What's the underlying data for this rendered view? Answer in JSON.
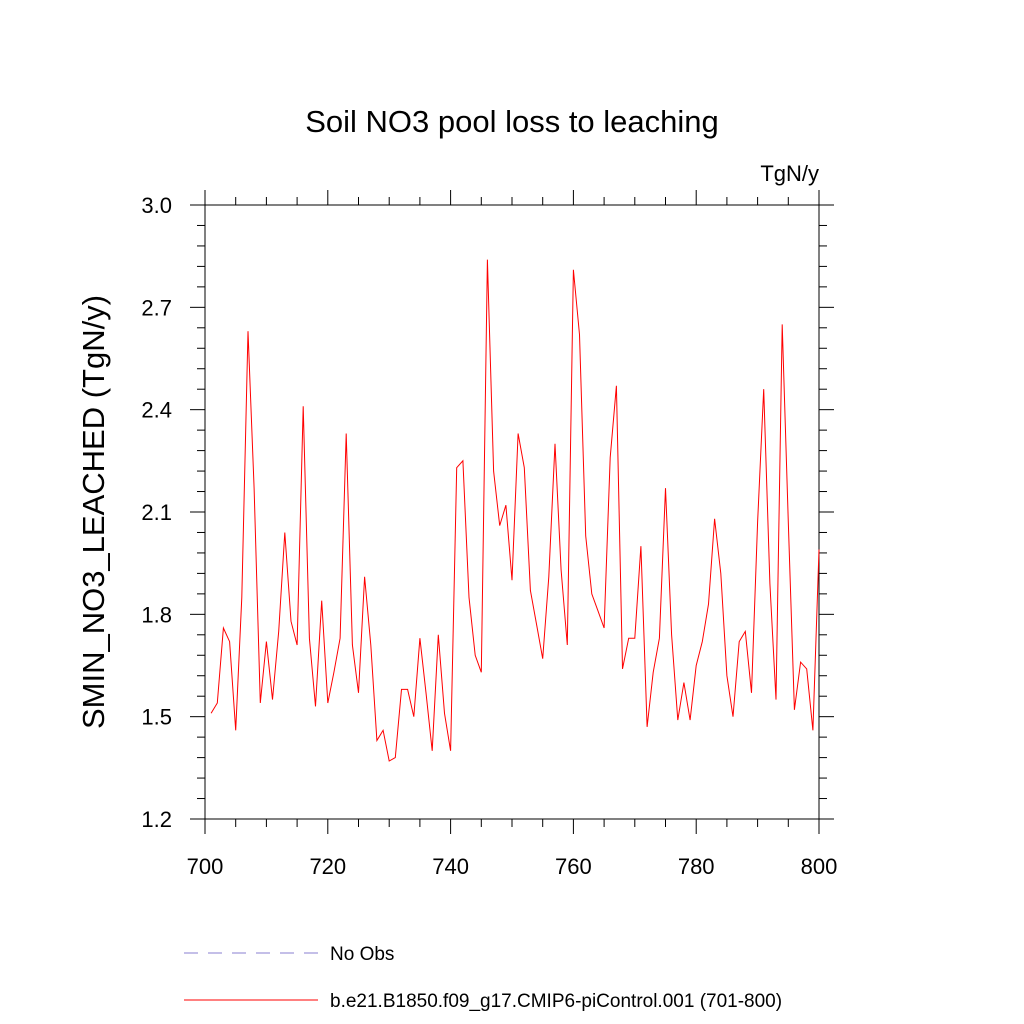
{
  "chart_data": {
    "type": "line",
    "title": "Soil NO3 pool loss to leaching",
    "units_label": "TgN/y",
    "ylabel": "SMIN_NO3_LEACHED  (TgN/y)",
    "xlabel": "",
    "xlim": [
      700,
      800
    ],
    "ylim": [
      1.2,
      3.0
    ],
    "x_ticks": [
      700,
      720,
      740,
      760,
      780,
      800
    ],
    "x_tick_labels": [
      "700",
      "720",
      "740",
      "760",
      "780",
      "800"
    ],
    "y_ticks": [
      1.2,
      1.5,
      1.8,
      2.1,
      2.4,
      2.7,
      3.0
    ],
    "y_tick_labels": [
      "1.2",
      "1.5",
      "1.8",
      "2.1",
      "2.4",
      "2.7",
      "3.0"
    ],
    "grid": false,
    "legend_position": "bottom",
    "series": [
      {
        "name": "b.e21.B1850.f09_g17.CMIP6-piControl.001 (701-800)",
        "color": "#ff0000",
        "style": "solid",
        "x": [
          701,
          702,
          703,
          704,
          705,
          706,
          707,
          708,
          709,
          710,
          711,
          712,
          713,
          714,
          715,
          716,
          717,
          718,
          719,
          720,
          721,
          722,
          723,
          724,
          725,
          726,
          727,
          728,
          729,
          730,
          731,
          732,
          733,
          734,
          735,
          736,
          737,
          738,
          739,
          740,
          741,
          742,
          743,
          744,
          745,
          746,
          747,
          748,
          749,
          750,
          751,
          752,
          753,
          754,
          755,
          756,
          757,
          758,
          759,
          760,
          761,
          762,
          763,
          764,
          765,
          766,
          767,
          768,
          769,
          770,
          771,
          772,
          773,
          774,
          775,
          776,
          777,
          778,
          779,
          780,
          781,
          782,
          783,
          784,
          785,
          786,
          787,
          788,
          789,
          790,
          791,
          792,
          793,
          794,
          795,
          796,
          797,
          798,
          799,
          800
        ],
        "y": [
          1.51,
          1.54,
          1.76,
          1.72,
          1.46,
          1.85,
          2.63,
          2.17,
          1.54,
          1.72,
          1.55,
          1.75,
          2.04,
          1.78,
          1.71,
          2.41,
          1.73,
          1.53,
          1.84,
          1.54,
          1.63,
          1.73,
          2.33,
          1.71,
          1.57,
          1.91,
          1.71,
          1.43,
          1.46,
          1.37,
          1.38,
          1.58,
          1.58,
          1.5,
          1.73,
          1.57,
          1.4,
          1.74,
          1.51,
          1.4,
          2.23,
          2.25,
          1.85,
          1.68,
          1.63,
          2.84,
          2.22,
          2.06,
          2.12,
          1.9,
          2.33,
          2.23,
          1.87,
          1.77,
          1.67,
          1.91,
          2.3,
          1.93,
          1.71,
          2.81,
          2.62,
          2.03,
          1.86,
          1.81,
          1.76,
          2.26,
          2.47,
          1.64,
          1.73,
          1.73,
          2.0,
          1.47,
          1.63,
          1.73,
          2.17,
          1.74,
          1.49,
          1.6,
          1.49,
          1.65,
          1.72,
          1.83,
          2.08,
          1.92,
          1.62,
          1.5,
          1.72,
          1.75,
          1.57,
          2.07,
          2.46,
          1.89,
          1.55,
          2.65,
          2.07,
          1.52,
          1.66,
          1.64,
          1.46,
          1.99
        ]
      },
      {
        "name": "No Obs",
        "color": "#8a7fd0",
        "style": "dashed",
        "x": [],
        "y": []
      }
    ]
  }
}
